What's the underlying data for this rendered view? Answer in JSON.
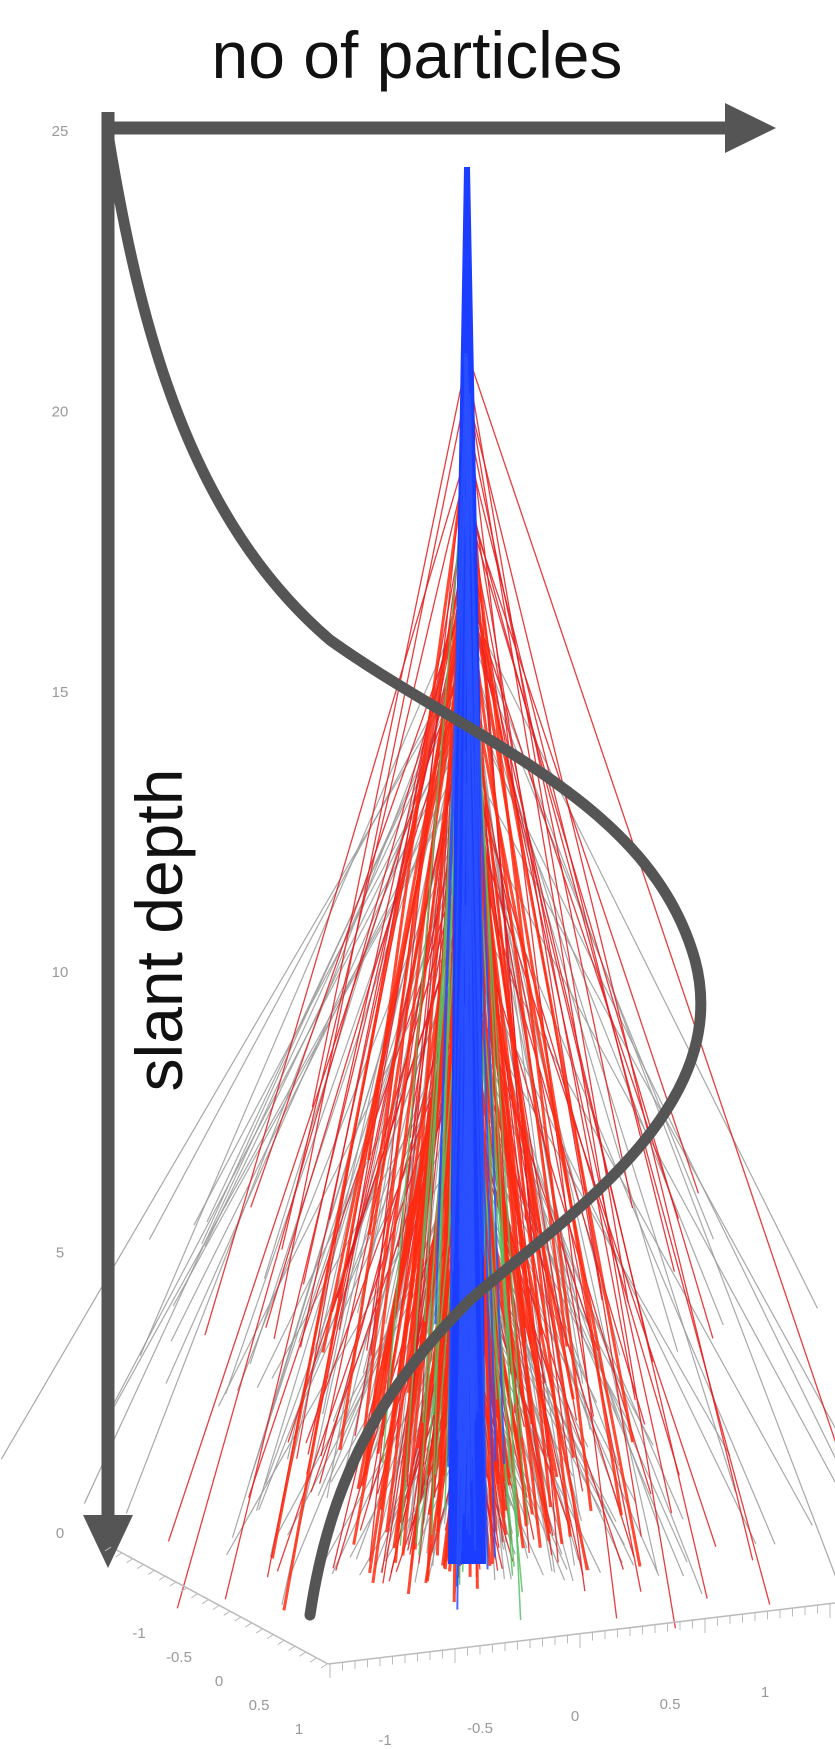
{
  "title": "no of particles",
  "axis_label": "slant depth",
  "z_ticks": [
    25,
    20,
    15,
    10,
    5,
    0
  ],
  "x_ticks": [
    -1,
    -0.5,
    0,
    0.5,
    1
  ],
  "y_ticks": [
    -1,
    -0.5,
    0,
    0.5,
    1
  ]
}
